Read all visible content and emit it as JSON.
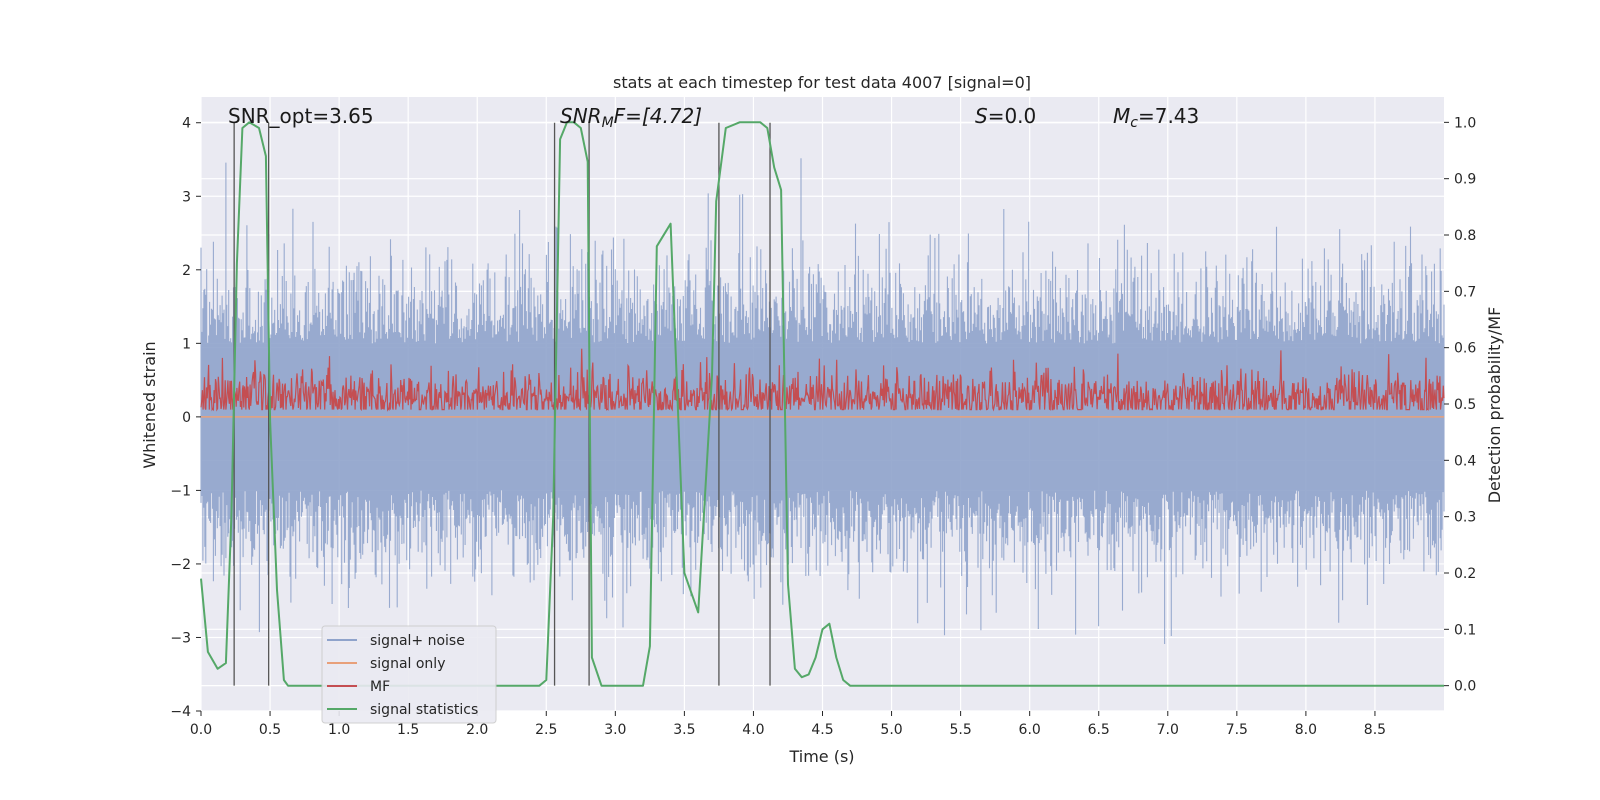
{
  "chart_data": {
    "type": "line",
    "title": "stats at each timestep for test data 4007 [signal=0]",
    "xlabel": "Time (s)",
    "ylabel_left": "Whitened strain",
    "ylabel_right": "Detection probability/MF",
    "xlim": [
      0,
      9.0
    ],
    "ylim_left": [
      -4.0,
      4.35
    ],
    "ylim_right": [
      -0.045,
      1.045
    ],
    "xticks": [
      0.0,
      0.5,
      1.0,
      1.5,
      2.0,
      2.5,
      3.0,
      3.5,
      4.0,
      4.5,
      5.0,
      5.5,
      6.0,
      6.5,
      7.0,
      7.5,
      8.0,
      8.5
    ],
    "xtick_labels": [
      "0.0",
      "0.5",
      "1.0",
      "1.5",
      "2.0",
      "2.5",
      "3.0",
      "3.5",
      "4.0",
      "4.5",
      "5.0",
      "5.5",
      "6.0",
      "6.5",
      "7.0",
      "7.5",
      "8.0",
      "8.5"
    ],
    "yticks_left": [
      -4,
      -3,
      -2,
      -1,
      0,
      1,
      2,
      3,
      4
    ],
    "ytick_labels_left": [
      "−4",
      "−3",
      "−2",
      "−1",
      "0",
      "1",
      "2",
      "3",
      "4"
    ],
    "yticks_right": [
      0.0,
      0.1,
      0.2,
      0.3,
      0.4,
      0.5,
      0.6,
      0.7,
      0.8,
      0.9,
      1.0
    ],
    "ytick_labels_right": [
      "0.0",
      "0.1",
      "0.2",
      "0.3",
      "0.4",
      "0.5",
      "0.6",
      "0.7",
      "0.8",
      "0.9",
      "1.0"
    ],
    "annotations": {
      "snr_opt": "SNR_opt=3.65",
      "snr_mf_main": "SNR",
      "snr_mf_sub": "M",
      "snr_mf_rest": "F=[4.72]",
      "s_main": "S",
      "s_rest": "=0.0",
      "mc_main": "M",
      "mc_sub": "c",
      "mc_rest": "=7.43"
    },
    "detection_boundaries_s": [
      0.24,
      0.49,
      2.56,
      2.81,
      3.75,
      4.12
    ],
    "series": [
      {
        "name": "signal+ noise",
        "color": "#8fa3cb",
        "axis": "left",
        "description": "whitened noisy strain, roughly symmetric, most samples within ±2, peaks near ±3.6"
      },
      {
        "name": "signal only",
        "color": "#e8a07a",
        "axis": "left",
        "value": 0.0
      },
      {
        "name": "MF",
        "color": "#c44e52",
        "axis": "right",
        "description": "matched-filter output fluctuating around 0.51, max about 0.62"
      },
      {
        "name": "signal statistics",
        "color": "#55a868",
        "axis": "right",
        "x": [
          0.0,
          0.05,
          0.12,
          0.18,
          0.22,
          0.26,
          0.3,
          0.35,
          0.42,
          0.47,
          0.5,
          0.55,
          0.6,
          0.63,
          0.7,
          0.8,
          1.0,
          1.5,
          2.0,
          2.3,
          2.45,
          2.5,
          2.55,
          2.6,
          2.65,
          2.7,
          2.75,
          2.8,
          2.83,
          2.9,
          3.0,
          3.2,
          3.25,
          3.3,
          3.4,
          3.5,
          3.6,
          3.7,
          3.73,
          3.8,
          3.9,
          4.0,
          4.05,
          4.1,
          4.15,
          4.2,
          4.25,
          4.3,
          4.35,
          4.4,
          4.45,
          4.5,
          4.55,
          4.6,
          4.65,
          4.7,
          4.8,
          4.9,
          5.5,
          6.0,
          7.0,
          8.0,
          9.0
        ],
        "y": [
          0.19,
          0.06,
          0.03,
          0.04,
          0.3,
          0.75,
          0.99,
          1.0,
          0.99,
          0.94,
          0.47,
          0.17,
          0.01,
          0.0,
          0.0,
          0.0,
          0.0,
          0.0,
          0.0,
          0.0,
          0.0,
          0.01,
          0.3,
          0.97,
          1.0,
          1.0,
          0.99,
          0.93,
          0.05,
          0.0,
          0.0,
          0.0,
          0.07,
          0.78,
          0.82,
          0.2,
          0.13,
          0.55,
          0.86,
          0.99,
          1.0,
          1.0,
          1.0,
          0.99,
          0.92,
          0.88,
          0.18,
          0.03,
          0.015,
          0.02,
          0.05,
          0.1,
          0.11,
          0.05,
          0.01,
          0.0,
          0.0,
          0.0,
          0.0,
          0.0,
          0.0,
          0.0,
          0.0
        ]
      }
    ],
    "legend": {
      "position": "lower-left",
      "items": [
        "signal+ noise",
        "signal only",
        "MF",
        "signal statistics"
      ]
    },
    "grid": true
  }
}
